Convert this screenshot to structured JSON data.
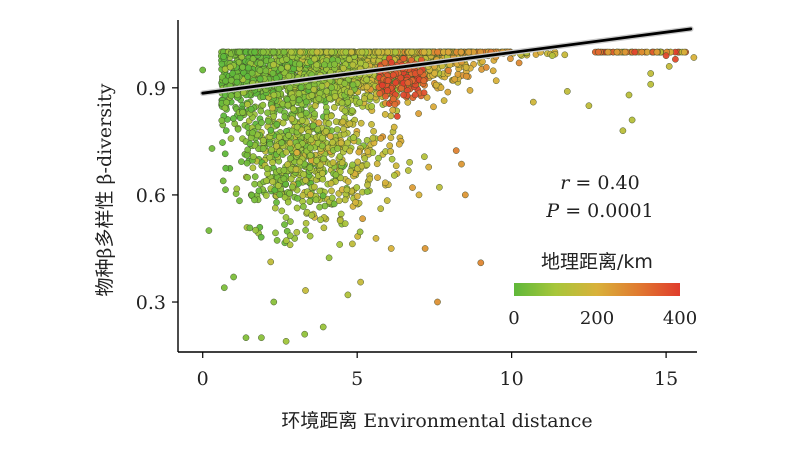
{
  "chart_data": {
    "type": "scatter",
    "xlabel": "环境距离 Environmental distance",
    "ylabel": "物种β多样性 β-diversity",
    "x_ticks": [
      "0",
      "5",
      "10",
      "15"
    ],
    "y_ticks": [
      "0.3",
      "0.6",
      "0.9"
    ],
    "xlim": [
      -0.8,
      16
    ],
    "ylim": [
      0.16,
      1.09
    ],
    "grid": false,
    "annotation": {
      "r_symbol": "r",
      "r_value": " = 0.40",
      "p_symbol": "P",
      "p_value": " = 0.0001"
    },
    "regression": {
      "x": [
        0,
        15.8
      ],
      "y": [
        0.885,
        1.065
      ]
    },
    "colorbar": {
      "title": "地理距离/km",
      "ticks": [
        "0",
        "200",
        "400"
      ],
      "range": [
        0,
        400
      ],
      "colors": [
        "#5fb83a",
        "#a7c63a",
        "#d9b13a",
        "#e07a30",
        "#e03c2c"
      ]
    },
    "point_style": {
      "fill_low": "#6cbd3c",
      "fill_high": "#e3472d",
      "stroke": "#3a4a2a"
    },
    "sample_points": [
      {
        "x": 0.0,
        "y": 0.95,
        "d": 20
      },
      {
        "x": 0.2,
        "y": 0.5,
        "d": 30
      },
      {
        "x": 0.3,
        "y": 0.73,
        "d": 25
      },
      {
        "x": 0.7,
        "y": 0.34,
        "d": 40
      },
      {
        "x": 1.0,
        "y": 0.37,
        "d": 40
      },
      {
        "x": 1.4,
        "y": 0.2,
        "d": 50
      },
      {
        "x": 1.9,
        "y": 0.2,
        "d": 60
      },
      {
        "x": 2.3,
        "y": 0.3,
        "d": 60
      },
      {
        "x": 2.7,
        "y": 0.19,
        "d": 90
      },
      {
        "x": 3.3,
        "y": 0.21,
        "d": 70
      },
      {
        "x": 3.9,
        "y": 0.23,
        "d": 80
      },
      {
        "x": 4.7,
        "y": 0.32,
        "d": 120
      },
      {
        "x": 6.3,
        "y": 0.82,
        "d": 390
      },
      {
        "x": 6.5,
        "y": 0.88,
        "d": 380
      },
      {
        "x": 6.0,
        "y": 0.92,
        "d": 360
      },
      {
        "x": 6.1,
        "y": 0.45,
        "d": 200
      },
      {
        "x": 7.2,
        "y": 0.45,
        "d": 250
      },
      {
        "x": 7.6,
        "y": 0.3,
        "d": 260
      },
      {
        "x": 7.0,
        "y": 0.6,
        "d": 200
      },
      {
        "x": 8.5,
        "y": 0.6,
        "d": 250
      },
      {
        "x": 9.0,
        "y": 0.41,
        "d": 280
      },
      {
        "x": 9.5,
        "y": 0.92,
        "d": 200
      },
      {
        "x": 10.7,
        "y": 0.86,
        "d": 180
      },
      {
        "x": 11.8,
        "y": 0.89,
        "d": 150
      },
      {
        "x": 12.5,
        "y": 0.85,
        "d": 150
      },
      {
        "x": 13.6,
        "y": 0.78,
        "d": 140
      },
      {
        "x": 13.8,
        "y": 0.88,
        "d": 140
      },
      {
        "x": 13.9,
        "y": 0.81,
        "d": 130
      },
      {
        "x": 14.5,
        "y": 0.91,
        "d": 140
      },
      {
        "x": 14.5,
        "y": 0.94,
        "d": 150
      },
      {
        "x": 15.1,
        "y": 0.96,
        "d": 160
      },
      {
        "x": 15.3,
        "y": 0.98,
        "d": 380
      },
      {
        "x": 15.0,
        "y": 0.99,
        "d": 380
      },
      {
        "x": 15.9,
        "y": 0.985,
        "d": 200
      }
    ]
  }
}
